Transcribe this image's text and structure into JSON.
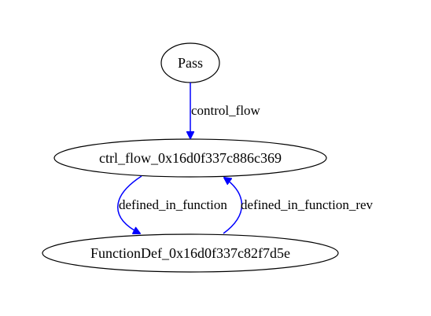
{
  "colors": {
    "edge": "#0000ff",
    "node_stroke": "#000000",
    "background": "#ffffff"
  },
  "nodes": {
    "pass": {
      "label": "Pass"
    },
    "ctrl_flow": {
      "label": "ctrl_flow_0x16d0f337c886c369"
    },
    "function_def": {
      "label": "FunctionDef_0x16d0f337c82f7d5e"
    }
  },
  "edges": {
    "control_flow": {
      "label": "control_flow",
      "from": "Pass",
      "to": "ctrl_flow_0x16d0f337c886c369"
    },
    "defined_in_function": {
      "label": "defined_in_function",
      "from": "ctrl_flow_0x16d0f337c886c369",
      "to": "FunctionDef_0x16d0f337c82f7d5e"
    },
    "defined_in_function_rev": {
      "label": "defined_in_function_rev",
      "from": "FunctionDef_0x16d0f337c82f7d5e",
      "to": "ctrl_flow_0x16d0f337c886c369"
    }
  }
}
